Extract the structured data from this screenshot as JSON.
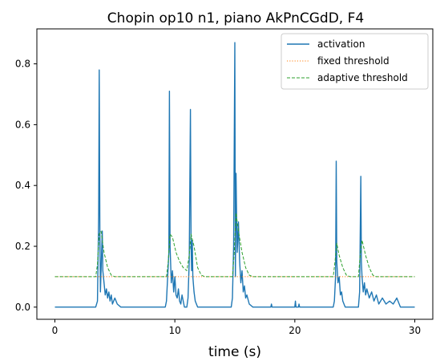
{
  "chart_data": {
    "type": "line",
    "title": "Chopin op10 n1, piano AkPnCGdD, F4",
    "xlabel": "time (s)",
    "ylabel": "",
    "xlim": [
      -1.5,
      31.5
    ],
    "ylim": [
      -0.04,
      0.915
    ],
    "x_ticks": [
      0,
      10,
      20,
      30
    ],
    "x_tick_labels": [
      "0",
      "10",
      "20",
      "30"
    ],
    "y_ticks": [
      0.0,
      0.2,
      0.4,
      0.6,
      0.8
    ],
    "y_tick_labels": [
      "0.0",
      "0.2",
      "0.4",
      "0.6",
      "0.8"
    ],
    "grid": false,
    "legend_position": "top-right",
    "series": [
      {
        "name": "activation",
        "color": "#1f77b4",
        "style": "solid",
        "points": [
          [
            0,
            0
          ],
          [
            3.4,
            0
          ],
          [
            3.55,
            0.02
          ],
          [
            3.65,
            0.3
          ],
          [
            3.7,
            0.78
          ],
          [
            3.75,
            0.25
          ],
          [
            3.8,
            0.05
          ],
          [
            3.9,
            0.18
          ],
          [
            3.95,
            0.25
          ],
          [
            4.0,
            0.12
          ],
          [
            4.1,
            0.08
          ],
          [
            4.2,
            0.04
          ],
          [
            4.3,
            0.06
          ],
          [
            4.4,
            0.03
          ],
          [
            4.5,
            0.05
          ],
          [
            4.6,
            0.02
          ],
          [
            4.7,
            0.04
          ],
          [
            4.8,
            0.01
          ],
          [
            5.0,
            0.03
          ],
          [
            5.2,
            0.01
          ],
          [
            5.5,
            0
          ],
          [
            9.2,
            0
          ],
          [
            9.3,
            0.02
          ],
          [
            9.4,
            0.1
          ],
          [
            9.5,
            0.18
          ],
          [
            9.55,
            0.71
          ],
          [
            9.6,
            0.2
          ],
          [
            9.7,
            0.08
          ],
          [
            9.8,
            0.12
          ],
          [
            9.9,
            0.05
          ],
          [
            10.0,
            0.1
          ],
          [
            10.05,
            0.07
          ],
          [
            10.1,
            0.04
          ],
          [
            10.2,
            0.03
          ],
          [
            10.3,
            0.06
          ],
          [
            10.4,
            0.02
          ],
          [
            10.5,
            0.01
          ],
          [
            10.6,
            0.04
          ],
          [
            10.8,
            0
          ],
          [
            11.0,
            0
          ],
          [
            11.1,
            0.03
          ],
          [
            11.2,
            0.15
          ],
          [
            11.3,
            0.65
          ],
          [
            11.35,
            0.2
          ],
          [
            11.4,
            0.12
          ],
          [
            11.45,
            0.22
          ],
          [
            11.5,
            0.1
          ],
          [
            11.6,
            0.05
          ],
          [
            11.7,
            0.02
          ],
          [
            11.9,
            0
          ],
          [
            14.7,
            0
          ],
          [
            14.8,
            0.03
          ],
          [
            14.9,
            0.2
          ],
          [
            15.0,
            0.87
          ],
          [
            15.05,
            0.1
          ],
          [
            15.1,
            0.44
          ],
          [
            15.15,
            0.3
          ],
          [
            15.2,
            0.18
          ],
          [
            15.3,
            0.28
          ],
          [
            15.4,
            0.15
          ],
          [
            15.5,
            0.08
          ],
          [
            15.6,
            0.12
          ],
          [
            15.7,
            0.05
          ],
          [
            15.8,
            0.07
          ],
          [
            15.9,
            0.03
          ],
          [
            16.0,
            0.04
          ],
          [
            16.2,
            0.01
          ],
          [
            16.5,
            0
          ],
          [
            18.0,
            0
          ],
          [
            18.05,
            0.01
          ],
          [
            18.1,
            0
          ],
          [
            20.0,
            0
          ],
          [
            20.05,
            0.02
          ],
          [
            20.1,
            0
          ],
          [
            20.3,
            0
          ],
          [
            20.35,
            0.01
          ],
          [
            20.4,
            0
          ],
          [
            23.2,
            0
          ],
          [
            23.3,
            0.02
          ],
          [
            23.4,
            0.1
          ],
          [
            23.45,
            0.48
          ],
          [
            23.5,
            0.15
          ],
          [
            23.6,
            0.08
          ],
          [
            23.7,
            0.1
          ],
          [
            23.8,
            0.04
          ],
          [
            23.9,
            0.05
          ],
          [
            24.0,
            0.02
          ],
          [
            24.2,
            0
          ],
          [
            25.3,
            0
          ],
          [
            25.4,
            0.05
          ],
          [
            25.5,
            0.43
          ],
          [
            25.55,
            0.15
          ],
          [
            25.6,
            0.1
          ],
          [
            25.7,
            0.05
          ],
          [
            25.8,
            0.08
          ],
          [
            25.9,
            0.04
          ],
          [
            26.0,
            0.06
          ],
          [
            26.2,
            0.03
          ],
          [
            26.4,
            0.05
          ],
          [
            26.6,
            0.02
          ],
          [
            26.8,
            0.04
          ],
          [
            27.0,
            0.01
          ],
          [
            27.3,
            0.03
          ],
          [
            27.6,
            0.01
          ],
          [
            27.9,
            0.02
          ],
          [
            28.2,
            0.01
          ],
          [
            28.5,
            0.03
          ],
          [
            28.8,
            0
          ],
          [
            30,
            0
          ]
        ]
      },
      {
        "name": "fixed threshold",
        "color": "#ff7f0e",
        "style": "dotted",
        "points": [
          [
            0,
            0.1
          ],
          [
            30,
            0.1
          ]
        ]
      },
      {
        "name": "adaptive threshold",
        "color": "#2ca02c",
        "style": "dashed",
        "points": [
          [
            0,
            0.1
          ],
          [
            3.4,
            0.1
          ],
          [
            3.55,
            0.14
          ],
          [
            3.7,
            0.24
          ],
          [
            3.85,
            0.25
          ],
          [
            4.1,
            0.18
          ],
          [
            4.4,
            0.13
          ],
          [
            4.7,
            0.105
          ],
          [
            5.0,
            0.1
          ],
          [
            9.3,
            0.1
          ],
          [
            9.45,
            0.15
          ],
          [
            9.6,
            0.24
          ],
          [
            9.8,
            0.23
          ],
          [
            10.1,
            0.18
          ],
          [
            10.4,
            0.15
          ],
          [
            10.7,
            0.13
          ],
          [
            11.0,
            0.12
          ],
          [
            11.2,
            0.17
          ],
          [
            11.35,
            0.24
          ],
          [
            11.6,
            0.2
          ],
          [
            11.9,
            0.13
          ],
          [
            12.2,
            0.105
          ],
          [
            12.5,
            0.1
          ],
          [
            14.8,
            0.1
          ],
          [
            14.95,
            0.18
          ],
          [
            15.1,
            0.31
          ],
          [
            15.3,
            0.25
          ],
          [
            15.6,
            0.18
          ],
          [
            15.9,
            0.13
          ],
          [
            16.2,
            0.105
          ],
          [
            16.5,
            0.1
          ],
          [
            23.2,
            0.1
          ],
          [
            23.35,
            0.15
          ],
          [
            23.5,
            0.21
          ],
          [
            23.7,
            0.17
          ],
          [
            24.0,
            0.13
          ],
          [
            24.3,
            0.105
          ],
          [
            24.6,
            0.1
          ],
          [
            25.3,
            0.1
          ],
          [
            25.45,
            0.17
          ],
          [
            25.6,
            0.22
          ],
          [
            25.9,
            0.17
          ],
          [
            26.2,
            0.13
          ],
          [
            26.5,
            0.105
          ],
          [
            26.8,
            0.1
          ],
          [
            30,
            0.1
          ]
        ]
      }
    ]
  }
}
